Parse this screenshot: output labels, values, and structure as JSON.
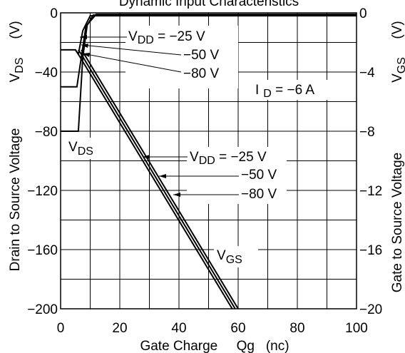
{
  "chart_data": {
    "type": "line",
    "title": "Dynamic Input Characteristics",
    "xlabel": "Gate Charge     Qg   (nc)",
    "xlim": [
      0,
      100
    ],
    "x_ticks": [
      "0",
      "20",
      "40",
      "60",
      "80",
      "100"
    ],
    "left_axis": {
      "label_main": "Drain to Source Voltage",
      "label_v": "V",
      "label_sub": "DS",
      "label_unit": "(V)",
      "ylim": [
        -200,
        0
      ],
      "ticks": [
        "0",
        "−40",
        "−80",
        "−120",
        "−160",
        "−200"
      ]
    },
    "right_axis": {
      "label_main": "Gate to Source Voltage",
      "label_v": "V",
      "label_sub": "GS",
      "label_unit": "(V)",
      "ylim": [
        -20,
        0
      ],
      "ticks": [
        "0",
        "−4",
        "−8",
        "−12",
        "−16",
        "−20"
      ]
    },
    "grid": true,
    "condition": {
      "text_i": "I",
      "text_sub": "D",
      "text_rest": " = −6 A"
    },
    "vds_label": {
      "v": "V",
      "sub": "DS"
    },
    "vgs_label": {
      "v": "V",
      "sub": "GS"
    },
    "vds_annotations": [
      {
        "prefix_v": "V",
        "prefix_sub": "DD",
        "text": " = −25 V"
      },
      {
        "text": "−50 V"
      },
      {
        "text": "−80 V"
      }
    ],
    "vgs_annotations": [
      {
        "prefix_v": "V",
        "prefix_sub": "DD",
        "text": " = −25 V"
      },
      {
        "text": "−50 V"
      },
      {
        "text": "−80 V"
      }
    ],
    "series": [
      {
        "vdd": -25,
        "vds_x": [
          0,
          3,
          5,
          6,
          7.5,
          10,
          100
        ],
        "vds_y": [
          -25,
          -25,
          -25,
          -28,
          -12,
          -2,
          -2
        ],
        "vgs_x": [
          5,
          6,
          58
        ],
        "vgs_y": [
          -2.5,
          -2.8,
          -20
        ]
      },
      {
        "vdd": -50,
        "vds_x": [
          0,
          3,
          5.5,
          7,
          8.5,
          11,
          100
        ],
        "vds_y": [
          -50,
          -50,
          -50,
          -30,
          -10,
          -1.5,
          -1.5
        ],
        "vgs_x": [
          6,
          7,
          59
        ],
        "vgs_y": [
          -2.5,
          -2.8,
          -20
        ]
      },
      {
        "vdd": -80,
        "vds_x": [
          0,
          3,
          6,
          7.5,
          9,
          12,
          100
        ],
        "vds_y": [
          -80,
          -80,
          -80,
          -30,
          -8,
          -1,
          -1
        ],
        "vgs_x": [
          7,
          8,
          60
        ],
        "vgs_y": [
          -2.5,
          -2.8,
          -20
        ]
      }
    ]
  }
}
